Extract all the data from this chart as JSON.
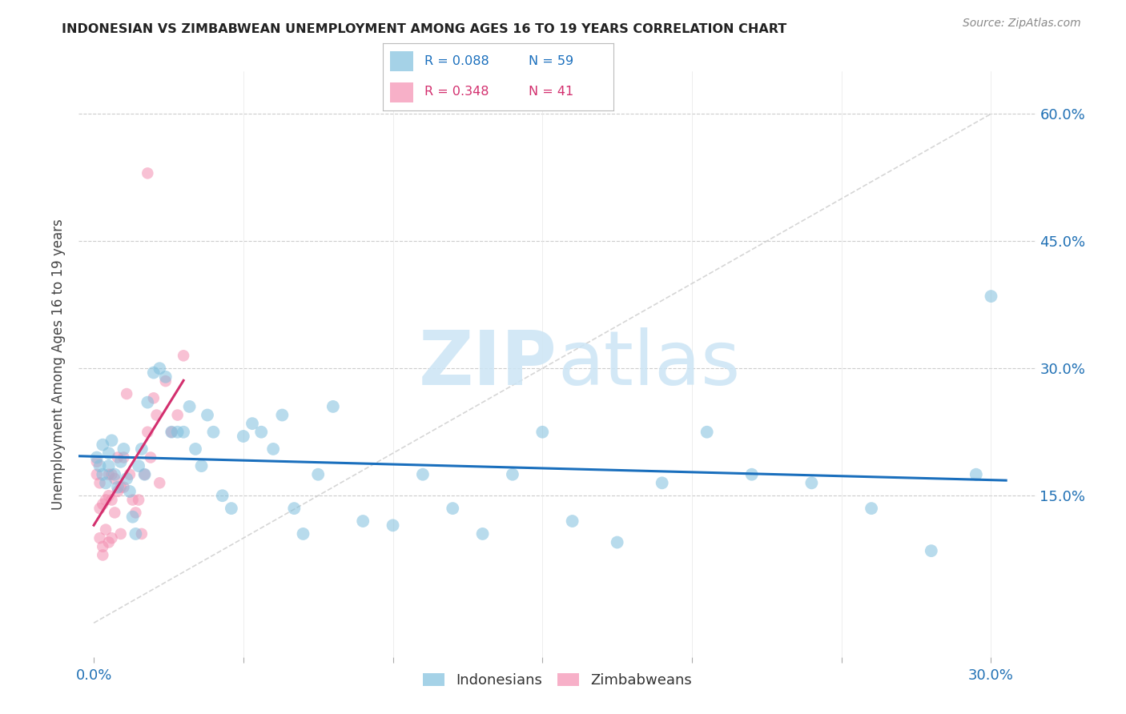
{
  "title": "INDONESIAN VS ZIMBABWEAN UNEMPLOYMENT AMONG AGES 16 TO 19 YEARS CORRELATION CHART",
  "source": "Source: ZipAtlas.com",
  "ylabel_label": "Unemployment Among Ages 16 to 19 years",
  "x_ticks": [
    0.0,
    0.05,
    0.1,
    0.15,
    0.2,
    0.25,
    0.3
  ],
  "x_tick_labels": [
    "0.0%",
    "",
    "",
    "",
    "",
    "",
    "30.0%"
  ],
  "y_ticks": [
    0.0,
    0.15,
    0.3,
    0.45,
    0.6
  ],
  "y_tick_labels": [
    "",
    "15.0%",
    "30.0%",
    "45.0%",
    "60.0%"
  ],
  "xlim": [
    -0.005,
    0.315
  ],
  "ylim": [
    -0.04,
    0.65
  ],
  "blue_color": "#7fbfdd",
  "pink_color": "#f48fb1",
  "blue_line_color": "#1a6fbd",
  "pink_line_color": "#d32f6e",
  "gray_dash_color": "#cccccc",
  "watermark_color": "#cce5f5",
  "watermark": "ZIPatlas",
  "blue_r": 0.088,
  "blue_n": 59,
  "pink_r": 0.348,
  "pink_n": 41,
  "indonesian_x": [
    0.001,
    0.002,
    0.003,
    0.003,
    0.004,
    0.005,
    0.005,
    0.006,
    0.007,
    0.008,
    0.009,
    0.01,
    0.011,
    0.012,
    0.013,
    0.014,
    0.015,
    0.016,
    0.017,
    0.018,
    0.02,
    0.022,
    0.024,
    0.026,
    0.028,
    0.03,
    0.032,
    0.034,
    0.036,
    0.038,
    0.04,
    0.043,
    0.046,
    0.05,
    0.053,
    0.056,
    0.06,
    0.063,
    0.067,
    0.07,
    0.075,
    0.08,
    0.09,
    0.1,
    0.11,
    0.12,
    0.13,
    0.14,
    0.15,
    0.16,
    0.175,
    0.19,
    0.205,
    0.22,
    0.24,
    0.26,
    0.28,
    0.295,
    0.3
  ],
  "indonesian_y": [
    0.195,
    0.185,
    0.175,
    0.21,
    0.165,
    0.2,
    0.185,
    0.215,
    0.175,
    0.16,
    0.19,
    0.205,
    0.17,
    0.155,
    0.125,
    0.105,
    0.185,
    0.205,
    0.175,
    0.26,
    0.295,
    0.3,
    0.29,
    0.225,
    0.225,
    0.225,
    0.255,
    0.205,
    0.185,
    0.245,
    0.225,
    0.15,
    0.135,
    0.22,
    0.235,
    0.225,
    0.205,
    0.245,
    0.135,
    0.105,
    0.175,
    0.255,
    0.12,
    0.115,
    0.175,
    0.135,
    0.105,
    0.175,
    0.225,
    0.12,
    0.095,
    0.165,
    0.225,
    0.175,
    0.165,
    0.135,
    0.085,
    0.175,
    0.385
  ],
  "zimbabwean_x": [
    0.001,
    0.001,
    0.002,
    0.002,
    0.002,
    0.003,
    0.003,
    0.003,
    0.004,
    0.004,
    0.005,
    0.005,
    0.005,
    0.006,
    0.006,
    0.006,
    0.007,
    0.007,
    0.008,
    0.008,
    0.009,
    0.009,
    0.01,
    0.01,
    0.011,
    0.012,
    0.013,
    0.014,
    0.015,
    0.016,
    0.017,
    0.018,
    0.019,
    0.02,
    0.021,
    0.022,
    0.024,
    0.026,
    0.028,
    0.03,
    0.018
  ],
  "zimbabwean_y": [
    0.19,
    0.175,
    0.165,
    0.135,
    0.1,
    0.14,
    0.09,
    0.08,
    0.145,
    0.11,
    0.175,
    0.15,
    0.095,
    0.175,
    0.145,
    0.1,
    0.17,
    0.13,
    0.195,
    0.155,
    0.16,
    0.105,
    0.195,
    0.16,
    0.27,
    0.175,
    0.145,
    0.13,
    0.145,
    0.105,
    0.175,
    0.225,
    0.195,
    0.265,
    0.245,
    0.165,
    0.285,
    0.225,
    0.245,
    0.315,
    0.53
  ]
}
